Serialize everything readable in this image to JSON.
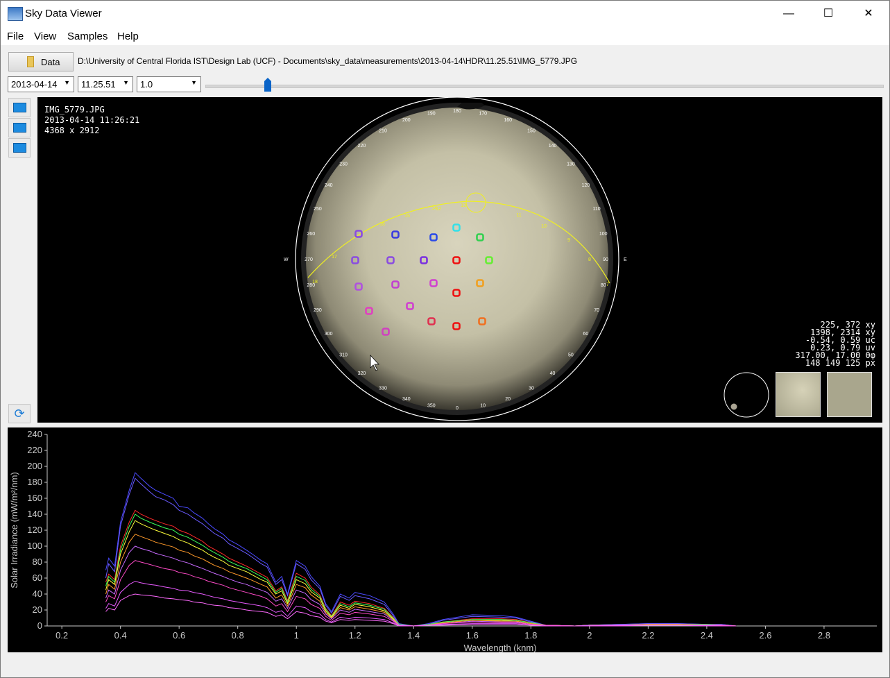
{
  "window": {
    "title": "Sky Data Viewer",
    "minimize": "—",
    "maximize": "☐",
    "close": "✕"
  },
  "menu": [
    "File",
    "View",
    "Samples",
    "Help"
  ],
  "toolbar": {
    "data_button": "Data",
    "path": "D:\\University of Central Florida IST\\Design Lab (UCF) - Documents\\sky_data\\measurements\\2013-04-14\\HDR\\11.25.51\\IMG_5779.JPG",
    "date_value": "2013-04-14",
    "time_value": "11.25.51",
    "exposure_value": "1.0",
    "slider_position": 0.09
  },
  "image_info": {
    "filename": "IMG_5779.JPG",
    "datetime": "2013-04-14 11:26:21",
    "dimensions": "4368 x 2912"
  },
  "readout": {
    "xy_screen": "225, 372 xy",
    "xy_image": "1398, 2314 xy",
    "uc": "-0.54, 0.59 uc",
    "uv": "0.23, 0.79 uv",
    "theta_phi": "317.00, 17.00 θφ",
    "px": "148 149 125 px"
  },
  "sky": {
    "compass": {
      "W": "W",
      "E": "E"
    },
    "azimuth_labels": [
      "0",
      "10",
      "20",
      "30",
      "40",
      "50",
      "60",
      "70",
      "80",
      "90",
      "100",
      "110",
      "120",
      "130",
      "140",
      "150",
      "160",
      "170",
      "180",
      "190",
      "200",
      "210",
      "220",
      "230",
      "240",
      "250",
      "260",
      "270",
      "280",
      "290",
      "300",
      "310",
      "320",
      "330",
      "340",
      "350"
    ],
    "sunpath_hours": [
      "18",
      "17",
      "16",
      "15",
      "14",
      "13",
      "12",
      "11",
      "10",
      "9",
      "8",
      "7",
      "6"
    ],
    "sample_colors": [
      "#8a4ce0",
      "#3a3ae0",
      "#2a4ae8",
      "#33e0e8",
      "#33d050",
      "#8a4ce0",
      "#8a4ce0",
      "#7a30e0",
      "#ee1111",
      "#66ee33",
      "#b050e0",
      "#c040d0",
      "#d040d0",
      "#ee1111",
      "#f0a020",
      "#e040c0",
      "#d040d0",
      "#e03050",
      "#ee1111",
      "#f07020",
      "#d040c0"
    ]
  },
  "chart_data": {
    "type": "line",
    "title": "",
    "xlabel": "Wavelength (knm)",
    "ylabel": "Solar Irradiance (mW/m²/nm)",
    "xlim": [
      0.15,
      2.98
    ],
    "ylim": [
      0,
      240
    ],
    "xticks": [
      0.2,
      0.4,
      0.6,
      0.8,
      1,
      1.2,
      1.4,
      1.6,
      1.8,
      2,
      2.2,
      2.4,
      2.6,
      2.8
    ],
    "yticks": [
      0,
      20,
      40,
      60,
      80,
      100,
      120,
      140,
      160,
      180,
      200,
      220,
      240
    ],
    "grid": false,
    "x": [
      0.35,
      0.36,
      0.38,
      0.4,
      0.43,
      0.45,
      0.47,
      0.5,
      0.52,
      0.55,
      0.58,
      0.6,
      0.63,
      0.65,
      0.68,
      0.7,
      0.72,
      0.75,
      0.77,
      0.8,
      0.83,
      0.85,
      0.88,
      0.9,
      0.93,
      0.95,
      0.97,
      1.0,
      1.03,
      1.05,
      1.08,
      1.1,
      1.12,
      1.15,
      1.18,
      1.2,
      1.25,
      1.3,
      1.33,
      1.35,
      1.4,
      1.45,
      1.5,
      1.6,
      1.7,
      1.75,
      1.8,
      1.85,
      1.95,
      2.0,
      2.1,
      2.2,
      2.3,
      2.4,
      2.45,
      2.5
    ],
    "series": [
      {
        "color": "#4a4aff",
        "values": [
          70,
          85,
          75,
          130,
          170,
          192,
          185,
          175,
          170,
          165,
          160,
          150,
          148,
          142,
          135,
          128,
          122,
          115,
          108,
          102,
          95,
          90,
          82,
          78,
          55,
          62,
          40,
          82,
          75,
          62,
          50,
          28,
          18,
          40,
          35,
          42,
          38,
          30,
          15,
          3,
          0,
          3,
          8,
          14,
          13,
          11,
          6,
          1,
          0,
          1,
          2,
          3,
          3,
          2,
          2,
          0
        ]
      },
      {
        "color": "#6a5aff",
        "values": [
          60,
          78,
          68,
          125,
          165,
          185,
          178,
          168,
          162,
          158,
          152,
          145,
          140,
          135,
          128,
          122,
          116,
          110,
          103,
          97,
          91,
          86,
          78,
          74,
          52,
          58,
          38,
          78,
          71,
          58,
          47,
          26,
          16,
          37,
          32,
          38,
          34,
          27,
          13,
          2,
          0,
          2,
          7,
          12,
          11,
          10,
          5,
          1,
          0,
          1,
          2,
          3,
          3,
          2,
          2,
          0
        ]
      },
      {
        "color": "#ff2a2a",
        "values": [
          55,
          65,
          58,
          100,
          130,
          145,
          140,
          135,
          132,
          128,
          125,
          120,
          116,
          112,
          106,
          100,
          96,
          90,
          85,
          80,
          75,
          71,
          65,
          61,
          44,
          49,
          32,
          66,
          60,
          49,
          39,
          22,
          13,
          30,
          26,
          31,
          28,
          22,
          11,
          2,
          0,
          2,
          5,
          9,
          9,
          8,
          4,
          1,
          0,
          1,
          1,
          2,
          2,
          2,
          1,
          0
        ]
      },
      {
        "color": "#3aff5a",
        "values": [
          50,
          62,
          55,
          95,
          125,
          140,
          135,
          130,
          127,
          123,
          120,
          115,
          111,
          107,
          101,
          96,
          92,
          86,
          81,
          76,
          72,
          68,
          62,
          58,
          42,
          47,
          30,
          62,
          57,
          46,
          37,
          21,
          12,
          28,
          24,
          29,
          26,
          21,
          10,
          2,
          0,
          2,
          5,
          8,
          8,
          7,
          4,
          1,
          0,
          1,
          1,
          2,
          2,
          2,
          1,
          0
        ]
      },
      {
        "color": "#ffff3a",
        "values": [
          45,
          58,
          52,
          90,
          118,
          132,
          128,
          123,
          120,
          116,
          112,
          108,
          104,
          100,
          95,
          90,
          86,
          81,
          76,
          72,
          68,
          64,
          58,
          55,
          40,
          44,
          28,
          58,
          53,
          43,
          35,
          19,
          11,
          26,
          22,
          27,
          24,
          19,
          9,
          1,
          0,
          1,
          4,
          7,
          7,
          6,
          3,
          1,
          0,
          1,
          1,
          2,
          2,
          1,
          1,
          0
        ]
      },
      {
        "color": "#ff9a2a",
        "values": [
          40,
          52,
          46,
          80,
          105,
          115,
          112,
          108,
          105,
          102,
          99,
          95,
          92,
          88,
          84,
          80,
          76,
          72,
          68,
          64,
          60,
          57,
          52,
          49,
          35,
          39,
          25,
          52,
          48,
          39,
          31,
          17,
          10,
          23,
          20,
          24,
          21,
          17,
          8,
          1,
          0,
          1,
          4,
          7,
          6,
          6,
          3,
          1,
          0,
          1,
          1,
          2,
          2,
          1,
          1,
          0
        ]
      },
      {
        "color": "#c86aff",
        "values": [
          35,
          45,
          40,
          70,
          92,
          100,
          97,
          94,
          91,
          88,
          85,
          82,
          79,
          76,
          72,
          69,
          66,
          62,
          59,
          55,
          52,
          49,
          45,
          42,
          31,
          34,
          22,
          45,
          41,
          33,
          27,
          15,
          9,
          20,
          17,
          21,
          18,
          15,
          7,
          1,
          0,
          1,
          3,
          6,
          5,
          5,
          2,
          1,
          0,
          1,
          1,
          1,
          1,
          1,
          1,
          0
        ]
      },
      {
        "color": "#ff4ac8",
        "values": [
          30,
          38,
          34,
          58,
          76,
          82,
          80,
          77,
          75,
          72,
          70,
          67,
          65,
          62,
          59,
          56,
          54,
          51,
          48,
          45,
          42,
          40,
          37,
          34,
          25,
          28,
          18,
          37,
          34,
          27,
          22,
          12,
          7,
          16,
          14,
          17,
          15,
          12,
          6,
          1,
          0,
          1,
          3,
          5,
          4,
          4,
          2,
          1,
          0,
          0,
          1,
          1,
          1,
          1,
          1,
          0
        ]
      },
      {
        "color": "#e85aff",
        "values": [
          22,
          28,
          25,
          42,
          52,
          56,
          54,
          52,
          51,
          49,
          47,
          45,
          44,
          42,
          40,
          38,
          36,
          34,
          32,
          30,
          28,
          27,
          25,
          23,
          17,
          19,
          12,
          25,
          23,
          18,
          15,
          8,
          5,
          11,
          9,
          11,
          10,
          8,
          4,
          1,
          0,
          1,
          2,
          3,
          3,
          3,
          1,
          0,
          0,
          0,
          1,
          1,
          1,
          1,
          0,
          0
        ]
      },
      {
        "color": "#ff6aff",
        "values": [
          18,
          22,
          20,
          32,
          38,
          40,
          39,
          38,
          37,
          35,
          34,
          33,
          32,
          30,
          29,
          27,
          26,
          25,
          23,
          22,
          20,
          19,
          18,
          17,
          12,
          14,
          9,
          18,
          16,
          13,
          11,
          6,
          4,
          8,
          7,
          8,
          7,
          6,
          3,
          0,
          0,
          1,
          1,
          2,
          2,
          2,
          1,
          0,
          0,
          0,
          0,
          1,
          1,
          0,
          0,
          0
        ]
      }
    ]
  }
}
